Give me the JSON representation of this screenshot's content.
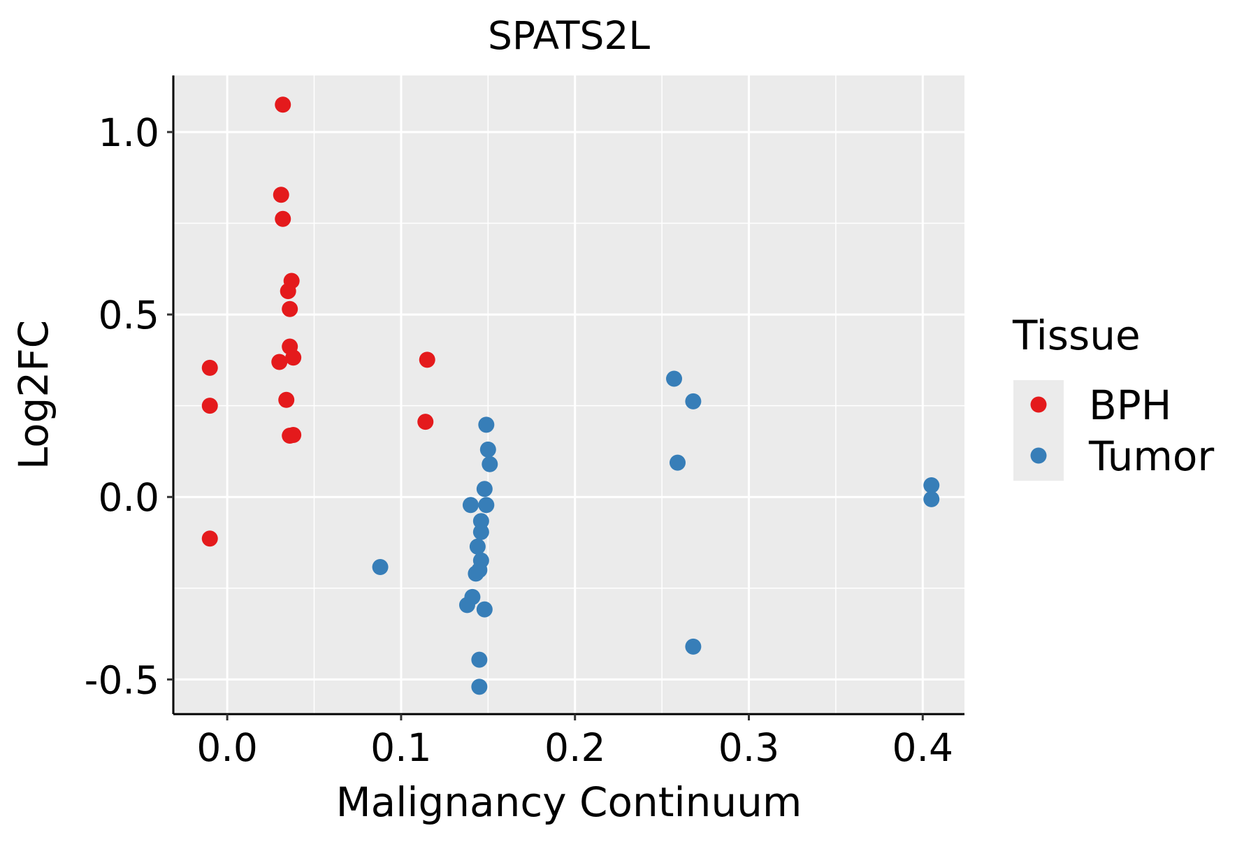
{
  "chart_data": {
    "type": "scatter",
    "title": "SPATS2L",
    "xlabel": "Malignancy Continuum",
    "ylabel": "Log2FC",
    "xlim": [
      -0.031,
      0.424
    ],
    "ylim": [
      -0.595,
      1.155
    ],
    "x_ticks": [
      0.0,
      0.1,
      0.2,
      0.3,
      0.4
    ],
    "x_tick_labels": [
      "0.0",
      "0.1",
      "0.2",
      "0.3",
      "0.4"
    ],
    "y_ticks": [
      -0.5,
      0.0,
      0.5,
      1.0
    ],
    "y_tick_labels": [
      "-0.5",
      "0.0",
      "0.5",
      "1.0"
    ],
    "grid": true,
    "legend": {
      "title": "Tissue",
      "position": "right",
      "entries": [
        {
          "label": "BPH",
          "color": "#e41a1c"
        },
        {
          "label": "Tumor",
          "color": "#377eb8"
        }
      ]
    },
    "series": [
      {
        "name": "BPH",
        "color": "#e41a1c",
        "points": [
          {
            "x": 0.032,
            "y": 1.075
          },
          {
            "x": 0.031,
            "y": 0.828
          },
          {
            "x": 0.032,
            "y": 0.762
          },
          {
            "x": 0.037,
            "y": 0.592
          },
          {
            "x": 0.035,
            "y": 0.564
          },
          {
            "x": 0.036,
            "y": 0.515
          },
          {
            "x": 0.036,
            "y": 0.412
          },
          {
            "x": 0.038,
            "y": 0.382
          },
          {
            "x": 0.03,
            "y": 0.37
          },
          {
            "x": 0.034,
            "y": 0.266
          },
          {
            "x": 0.036,
            "y": 0.168
          },
          {
            "x": 0.038,
            "y": 0.17
          },
          {
            "x": -0.01,
            "y": 0.354
          },
          {
            "x": -0.01,
            "y": 0.25
          },
          {
            "x": -0.01,
            "y": -0.114
          },
          {
            "x": 0.115,
            "y": 0.376
          },
          {
            "x": 0.114,
            "y": 0.206
          }
        ]
      },
      {
        "name": "Tumor",
        "color": "#377eb8",
        "points": [
          {
            "x": 0.149,
            "y": 0.198
          },
          {
            "x": 0.15,
            "y": 0.13
          },
          {
            "x": 0.151,
            "y": 0.09
          },
          {
            "x": 0.148,
            "y": 0.022
          },
          {
            "x": 0.14,
            "y": -0.022
          },
          {
            "x": 0.149,
            "y": -0.022
          },
          {
            "x": 0.146,
            "y": -0.066
          },
          {
            "x": 0.146,
            "y": -0.096
          },
          {
            "x": 0.144,
            "y": -0.136
          },
          {
            "x": 0.146,
            "y": -0.174
          },
          {
            "x": 0.145,
            "y": -0.2
          },
          {
            "x": 0.143,
            "y": -0.21
          },
          {
            "x": 0.141,
            "y": -0.274
          },
          {
            "x": 0.138,
            "y": -0.296
          },
          {
            "x": 0.148,
            "y": -0.308
          },
          {
            "x": 0.145,
            "y": -0.446
          },
          {
            "x": 0.145,
            "y": -0.52
          },
          {
            "x": 0.088,
            "y": -0.192
          },
          {
            "x": 0.257,
            "y": 0.324
          },
          {
            "x": 0.268,
            "y": 0.262
          },
          {
            "x": 0.259,
            "y": 0.094
          },
          {
            "x": 0.268,
            "y": -0.41
          },
          {
            "x": 0.405,
            "y": 0.032
          },
          {
            "x": 0.405,
            "y": -0.006
          }
        ]
      }
    ]
  }
}
